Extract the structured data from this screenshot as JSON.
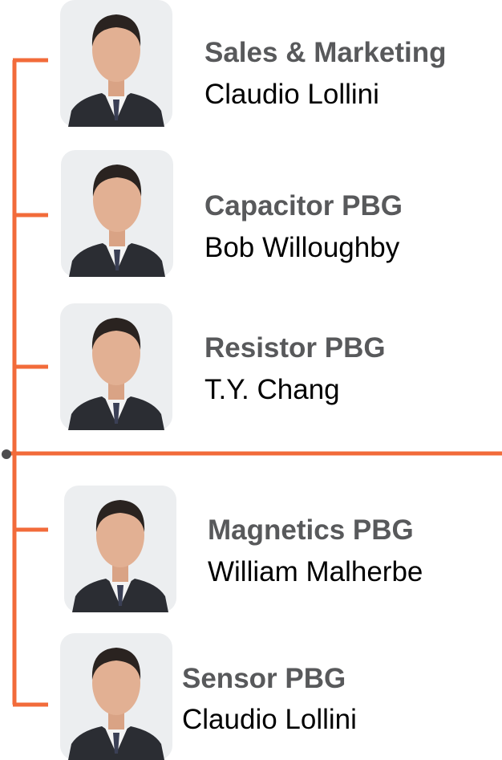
{
  "nodes": [
    {
      "title": "Sales & Marketing",
      "name": "Claudio Lollini"
    },
    {
      "title": "Capacitor PBG",
      "name": "Bob Willoughby"
    },
    {
      "title": "Resistor PBG",
      "name": "T.Y. Chang"
    },
    {
      "title": "Magnetics PBG",
      "name": "William Malherbe"
    },
    {
      "title": "Sensor PBG",
      "name": "Claudio Lollini"
    }
  ]
}
